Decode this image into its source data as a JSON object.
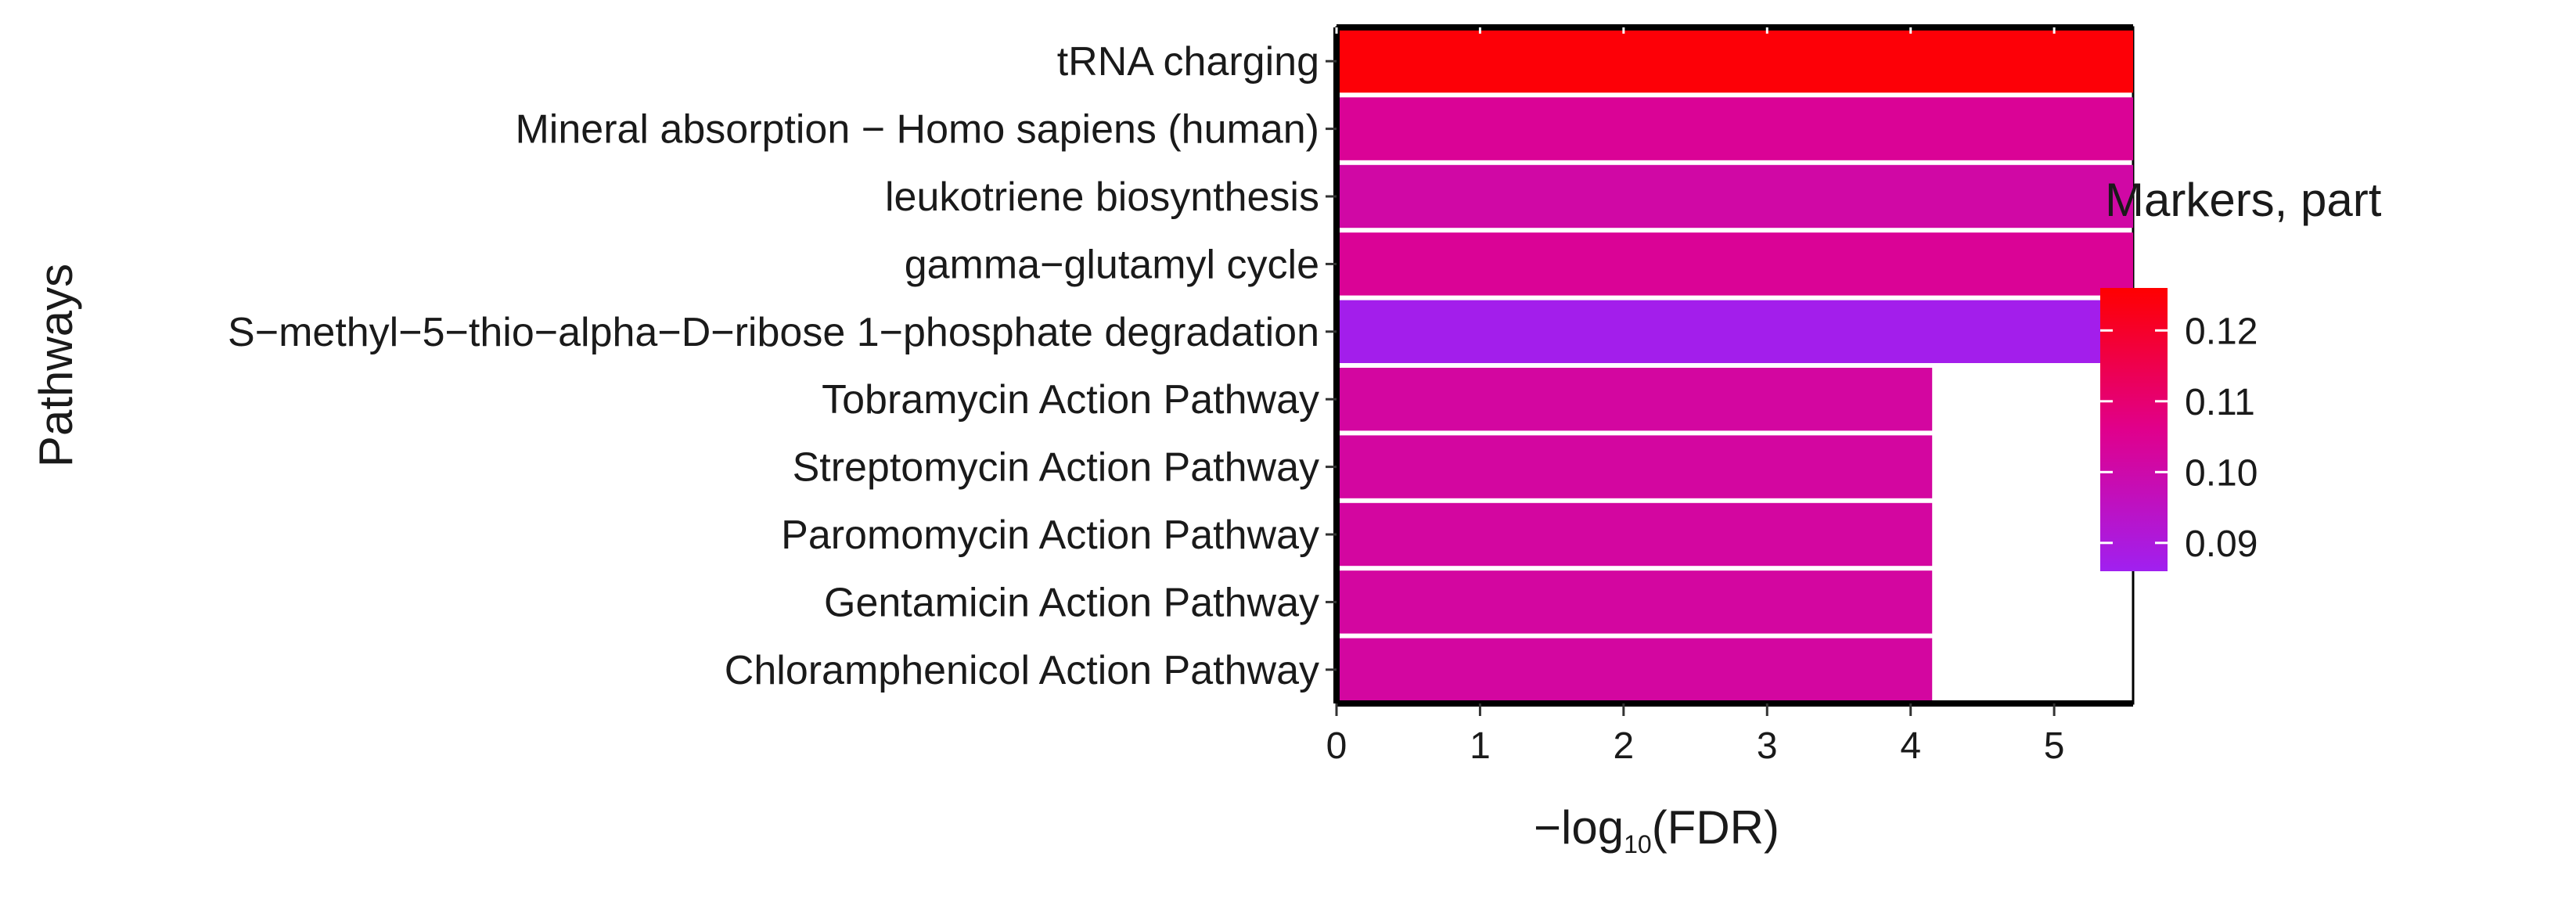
{
  "chart_data": {
    "type": "bar",
    "orientation": "horizontal",
    "ylabel": "Pathways",
    "xlabel_base": "−log",
    "xlabel_sub": "10",
    "xlabel_rest": "(FDR)",
    "xlim": [
      0,
      5.55
    ],
    "xticks": [
      0,
      1,
      2,
      3,
      4,
      5
    ],
    "categories": [
      "tRNA charging",
      "Mineral absorption − Homo sapiens (human)",
      "leukotriene biosynthesis",
      "gamma−glutamyl cycle",
      "S−methyl−5−thio−alpha−D−ribose 1−phosphate degradation",
      "Tobramycin Action Pathway",
      "Streptomycin Action Pathway",
      "Paromomycin Action Pathway",
      "Gentamicin Action Pathway",
      "Chloramphenicol Action Pathway"
    ],
    "values": [
      5.55,
      5.55,
      5.55,
      5.55,
      5.37,
      4.15,
      4.15,
      4.15,
      4.15,
      4.15
    ],
    "markers_part": [
      0.125,
      0.104,
      0.101,
      0.104,
      0.087,
      0.102,
      0.102,
      0.102,
      0.102,
      0.102
    ],
    "legend": {
      "title": "Markers, part",
      "placement": "right",
      "range": [
        0.086,
        0.126
      ],
      "ticks": [
        0.12,
        0.11,
        0.1,
        0.09
      ],
      "tick_labels": [
        "0.12",
        "0.11",
        "0.10",
        "0.09"
      ],
      "color_low": "#a020f0",
      "color_high": "#ff0000"
    },
    "grid": false
  }
}
